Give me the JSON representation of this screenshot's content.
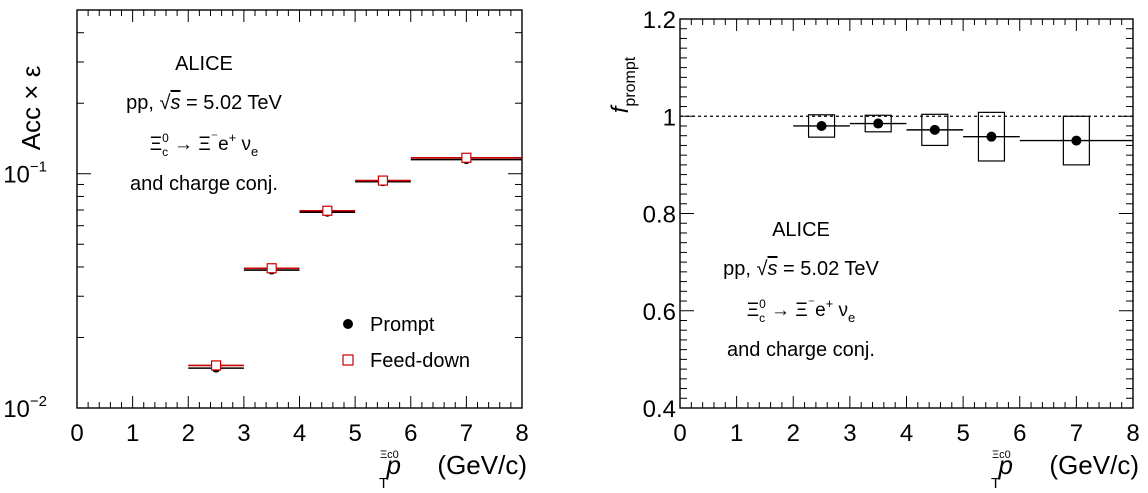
{
  "chart_data": [
    {
      "type": "scatter",
      "ylabel": "Acc × ε",
      "xlabel": "(GeV/c)",
      "xlabel_var": "p",
      "xlabel_sub": "T",
      "xlabel_sup": "Ξc0",
      "xlim": [
        0,
        8
      ],
      "ylim": [
        0.01,
        0.5
      ],
      "log_y": true,
      "x_ticks": [
        "0",
        "1",
        "2",
        "3",
        "4",
        "5",
        "6",
        "7",
        "8"
      ],
      "y_ticks": [
        {
          "value": 0.01,
          "base": "10",
          "exp": "−2"
        },
        {
          "value": 0.1,
          "base": "10",
          "exp": "−1"
        }
      ],
      "annotations": {
        "experiment": "ALICE",
        "system": "pp,",
        "energy": "= 5.02 TeV",
        "decay_lhs": "Ξ",
        "decay_arrow": "→ Ξ",
        "decay_rest": "e",
        "decay_nu": "ν",
        "conj": "and charge conj."
      },
      "legend_position": "bottom-right",
      "series": [
        {
          "name": "Prompt",
          "marker": "filled-circle",
          "color": "#000000",
          "x_bins": [
            [
              2,
              3
            ],
            [
              3,
              4
            ],
            [
              4,
              5
            ],
            [
              5,
              6
            ],
            [
              6,
              8
            ]
          ],
          "x": [
            2.5,
            3.5,
            4.5,
            5.5,
            7.0
          ],
          "y": [
            0.0148,
            0.0388,
            0.0685,
            0.0925,
            0.115
          ]
        },
        {
          "name": "Feed-down",
          "marker": "open-square",
          "color": "#cc0000",
          "x_bins": [
            [
              2,
              3
            ],
            [
              3,
              4
            ],
            [
              4,
              5
            ],
            [
              5,
              6
            ],
            [
              6,
              8
            ]
          ],
          "x": [
            2.5,
            3.5,
            4.5,
            5.5,
            7.0
          ],
          "y": [
            0.0152,
            0.0395,
            0.0695,
            0.0935,
            0.117
          ]
        }
      ]
    },
    {
      "type": "scatter",
      "ylabel_var": "f",
      "ylabel_sub": "prompt",
      "xlabel": "(GeV/c)",
      "xlabel_var": "p",
      "xlabel_sub": "T",
      "xlabel_sup": "Ξc0",
      "xlim": [
        0,
        8
      ],
      "ylim": [
        0.4,
        1.2
      ],
      "x_ticks": [
        "0",
        "1",
        "2",
        "3",
        "4",
        "5",
        "6",
        "7",
        "8"
      ],
      "y_ticks": [
        "0.4",
        "0.6",
        "0.8",
        "1",
        "1.2"
      ],
      "reference_line": 1.0,
      "annotations": {
        "experiment": "ALICE",
        "system": "pp,",
        "energy": "= 5.02 TeV",
        "decay_lhs": "Ξ",
        "decay_arrow": "→ Ξ",
        "decay_rest": "e",
        "decay_nu": "ν",
        "conj": "and charge conj."
      },
      "series": [
        {
          "marker": "filled-circle",
          "color": "#000000",
          "x_bins": [
            [
              2,
              3
            ],
            [
              3,
              4
            ],
            [
              4,
              5
            ],
            [
              5,
              6
            ],
            [
              6,
              8
            ]
          ],
          "x": [
            2.5,
            3.5,
            4.5,
            5.5,
            7.0
          ],
          "y": [
            0.98,
            0.985,
            0.972,
            0.958,
            0.95
          ],
          "syst_low": [
            0.957,
            0.968,
            0.94,
            0.908,
            0.9
          ],
          "syst_high": [
            1.003,
            1.002,
            1.004,
            1.008,
            1.0
          ]
        }
      ]
    }
  ]
}
